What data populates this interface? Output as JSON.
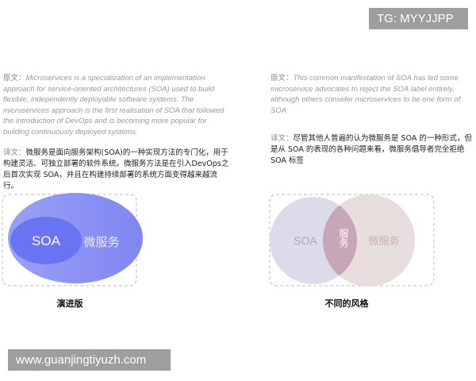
{
  "watermark_top": "TG: MYYJJPP",
  "watermark_bottom": "www.guanjingtiyuzh.com",
  "left": {
    "source_label": "原文：",
    "source_text": "Microservices is a specialization of an implementation approach for service-oriented architectures (SOA) used to build flexible, independently deployable software systems. The microservices approach is the first realisation of SOA that followed the introduction of DevOps and is becoming more popular for building continuously deployed systems.",
    "translation_label": "译文：",
    "translation_text": "微服务是面向服务架构(SOA)的一种实现方法的专门化，用于构建灵活、可独立部署的软件系统。微服务方法是在引入DevOps之后首次实现 SOA，并且在构建持续部署的系统方面变得越来越流行。",
    "diagram": {
      "inner": "SOA",
      "outer": "微服务"
    },
    "caption": "演进版"
  },
  "right": {
    "source_label": "原文：",
    "source_text": "This common manifestation of SOA has led some microservice advocates to reject the SOA label entirely, although others consider microservices to be one form of SOA",
    "translation_label": "译文：",
    "translation_text": "尽管其他人普遍的认为微服务是 SOA 的一种形式，但是从 SOA 的表现的各种问题来看，微服务倡导者完全拒绝 SOA 标签",
    "diagram": {
      "left": "SOA",
      "middle": "服务",
      "right": "微服务"
    },
    "caption": "不同的风格"
  }
}
